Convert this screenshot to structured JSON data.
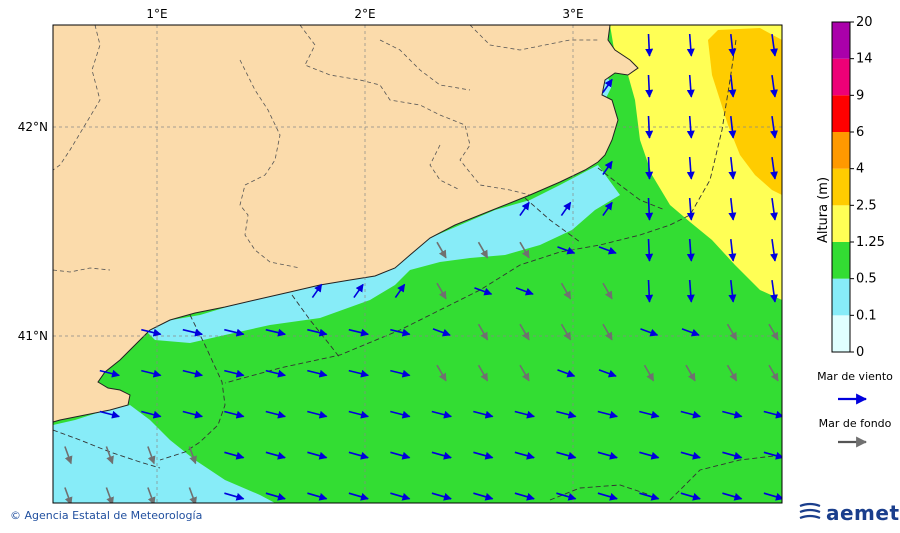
{
  "map": {
    "lon_ticks": [
      "1°E",
      "2°E",
      "3°E"
    ],
    "lat_ticks": [
      "42°N",
      "41°N"
    ],
    "colors": {
      "land": "#fbdbab",
      "sea_0_1": "#e0ffff",
      "sea_0_1_0_5": "#87ecf8",
      "sea_0_5_1_25": "#33dd33",
      "sea_1_25_2_5": "#ffff55",
      "sea_2_5_4": "#ffcc00",
      "wind_arrow": "#0000dd",
      "swell_arrow": "#707070"
    }
  },
  "colorbar": {
    "title": "Altura (m)",
    "levels": [
      "0",
      "0.1",
      "0.5",
      "1.25",
      "2.5",
      "4",
      "6",
      "9",
      "14",
      "20"
    ],
    "band_colors": [
      "#e0ffff",
      "#87ecf8",
      "#33dd33",
      "#ffff55",
      "#ffcc00",
      "#ff9900",
      "#ff0000",
      "#ee0077",
      "#aa00aa"
    ]
  },
  "legend": {
    "wind_label": "Mar de viento",
    "swell_label": "Mar de fondo"
  },
  "footer": {
    "credit": "© Agencia Estatal de Meteorología",
    "logo_text": "aemet"
  }
}
